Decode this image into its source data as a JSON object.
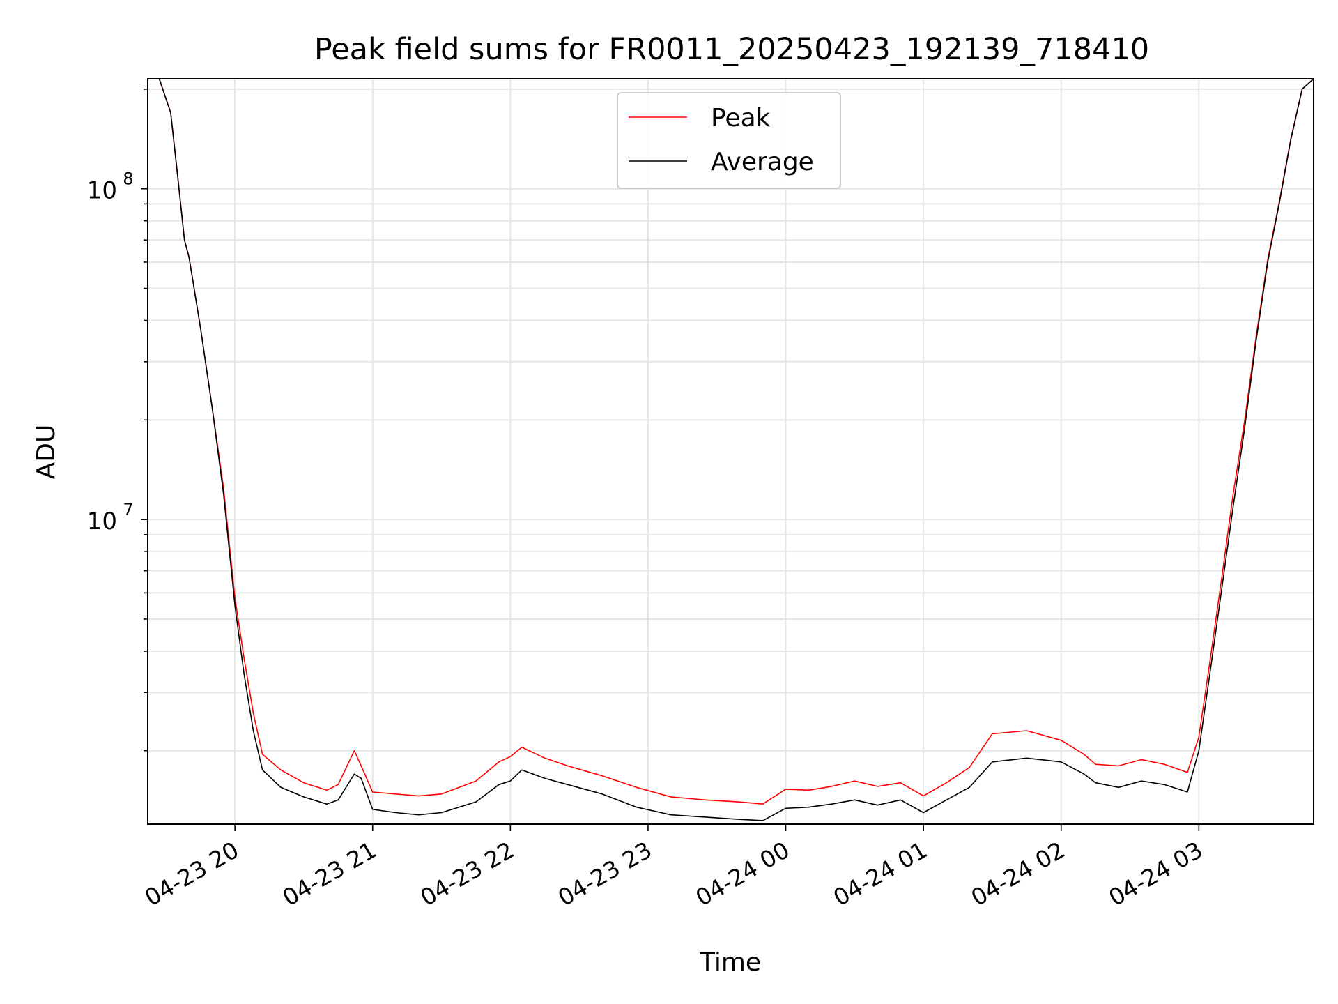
{
  "chart_data": {
    "type": "line",
    "title": "Peak field sums for FR0011_20250423_192139_718410",
    "xlabel": "Time",
    "ylabel": "ADU",
    "y_scale": "log",
    "ylim": [
      1200000,
      215000000
    ],
    "xlim": [
      "2025-04-23 19:22",
      "2025-04-24 03:50"
    ],
    "grid": true,
    "legend_position": "upper center",
    "x_ticks": [
      {
        "t": "2025-04-23 20:00",
        "label": "04-23 20"
      },
      {
        "t": "2025-04-23 21:00",
        "label": "04-23 21"
      },
      {
        "t": "2025-04-23 22:00",
        "label": "04-23 22"
      },
      {
        "t": "2025-04-23 23:00",
        "label": "04-23 23"
      },
      {
        "t": "2025-04-24 00:00",
        "label": "04-24 00"
      },
      {
        "t": "2025-04-24 01:00",
        "label": "04-24 01"
      },
      {
        "t": "2025-04-24 02:00",
        "label": "04-24 02"
      },
      {
        "t": "2025-04-24 03:00",
        "label": "04-24 03"
      }
    ],
    "y_ticks": [
      {
        "value": 10000000,
        "base": "10",
        "exp": "7"
      },
      {
        "value": 100000000,
        "base": "10",
        "exp": "8"
      }
    ],
    "series": [
      {
        "name": "Average",
        "color": "#000000",
        "x": [
          "2025-04-23 19:22",
          "2025-04-23 19:27",
          "2025-04-23 19:32",
          "2025-04-23 19:35",
          "2025-04-23 19:38",
          "2025-04-23 19:40",
          "2025-04-23 19:45",
          "2025-04-23 19:50",
          "2025-04-23 19:55",
          "2025-04-23 20:00",
          "2025-04-23 20:04",
          "2025-04-23 20:08",
          "2025-04-23 20:12",
          "2025-04-23 20:20",
          "2025-04-23 20:30",
          "2025-04-23 20:40",
          "2025-04-23 20:45",
          "2025-04-23 20:52",
          "2025-04-23 20:55",
          "2025-04-23 21:00",
          "2025-04-23 21:10",
          "2025-04-23 21:20",
          "2025-04-23 21:30",
          "2025-04-23 21:45",
          "2025-04-23 21:55",
          "2025-04-23 22:00",
          "2025-04-23 22:05",
          "2025-04-23 22:15",
          "2025-04-23 22:25",
          "2025-04-23 22:40",
          "2025-04-23 22:55",
          "2025-04-23 23:10",
          "2025-04-23 23:25",
          "2025-04-23 23:40",
          "2025-04-23 23:50",
          "2025-04-24 00:00",
          "2025-04-24 00:10",
          "2025-04-24 00:20",
          "2025-04-24 00:30",
          "2025-04-24 00:40",
          "2025-04-24 00:50",
          "2025-04-24 01:00",
          "2025-04-24 01:10",
          "2025-04-24 01:20",
          "2025-04-24 01:30",
          "2025-04-24 01:45",
          "2025-04-24 02:00",
          "2025-04-24 02:10",
          "2025-04-24 02:15",
          "2025-04-24 02:25",
          "2025-04-24 02:35",
          "2025-04-24 02:45",
          "2025-04-24 02:55",
          "2025-04-24 03:00",
          "2025-04-24 03:05",
          "2025-04-24 03:10",
          "2025-04-24 03:15",
          "2025-04-24 03:20",
          "2025-04-24 03:25",
          "2025-04-24 03:30",
          "2025-04-24 03:35",
          "2025-04-24 03:40",
          "2025-04-24 03:45",
          "2025-04-24 03:50"
        ],
        "y": [
          215000000,
          215000000,
          170000000,
          110000000,
          70000000,
          62000000,
          38000000,
          22000000,
          12000000,
          5500000,
          3400000,
          2300000,
          1750000,
          1550000,
          1450000,
          1380000,
          1420000,
          1700000,
          1650000,
          1330000,
          1300000,
          1280000,
          1300000,
          1400000,
          1580000,
          1620000,
          1750000,
          1650000,
          1580000,
          1480000,
          1350000,
          1280000,
          1260000,
          1240000,
          1230000,
          1340000,
          1350000,
          1380000,
          1420000,
          1370000,
          1420000,
          1300000,
          1420000,
          1550000,
          1850000,
          1900000,
          1850000,
          1700000,
          1600000,
          1550000,
          1620000,
          1580000,
          1500000,
          2000000,
          3500000,
          6200000,
          11000000,
          19000000,
          35000000,
          60000000,
          90000000,
          140000000,
          200000000,
          215000000
        ]
      },
      {
        "name": "Peak",
        "color": "#ff0000",
        "x": [
          "2025-04-23 19:22",
          "2025-04-23 19:27",
          "2025-04-23 19:32",
          "2025-04-23 19:35",
          "2025-04-23 19:38",
          "2025-04-23 19:40",
          "2025-04-23 19:45",
          "2025-04-23 19:50",
          "2025-04-23 19:55",
          "2025-04-23 20:00",
          "2025-04-23 20:04",
          "2025-04-23 20:08",
          "2025-04-23 20:12",
          "2025-04-23 20:20",
          "2025-04-23 20:30",
          "2025-04-23 20:40",
          "2025-04-23 20:45",
          "2025-04-23 20:52",
          "2025-04-23 20:55",
          "2025-04-23 21:00",
          "2025-04-23 21:10",
          "2025-04-23 21:20",
          "2025-04-23 21:30",
          "2025-04-23 21:45",
          "2025-04-23 21:55",
          "2025-04-23 22:00",
          "2025-04-23 22:05",
          "2025-04-23 22:15",
          "2025-04-23 22:25",
          "2025-04-23 22:40",
          "2025-04-23 22:55",
          "2025-04-23 23:10",
          "2025-04-23 23:25",
          "2025-04-23 23:40",
          "2025-04-23 23:50",
          "2025-04-24 00:00",
          "2025-04-24 00:10",
          "2025-04-24 00:20",
          "2025-04-24 00:30",
          "2025-04-24 00:40",
          "2025-04-24 00:50",
          "2025-04-24 01:00",
          "2025-04-24 01:10",
          "2025-04-24 01:20",
          "2025-04-24 01:30",
          "2025-04-24 01:45",
          "2025-04-24 02:00",
          "2025-04-24 02:10",
          "2025-04-24 02:15",
          "2025-04-24 02:25",
          "2025-04-24 02:35",
          "2025-04-24 02:45",
          "2025-04-24 02:55",
          "2025-04-24 03:00",
          "2025-04-24 03:05",
          "2025-04-24 03:10",
          "2025-04-24 03:15",
          "2025-04-24 03:20",
          "2025-04-24 03:25",
          "2025-04-24 03:30",
          "2025-04-24 03:35",
          "2025-04-24 03:40",
          "2025-04-24 03:45",
          "2025-04-24 03:50"
        ],
        "y": [
          215000000,
          215000000,
          170000000,
          110000000,
          70000000,
          62000000,
          38000000,
          22000000,
          12500000,
          5800000,
          3800000,
          2600000,
          1950000,
          1750000,
          1600000,
          1520000,
          1580000,
          2000000,
          1800000,
          1500000,
          1480000,
          1460000,
          1480000,
          1620000,
          1850000,
          1920000,
          2050000,
          1900000,
          1800000,
          1680000,
          1550000,
          1450000,
          1420000,
          1400000,
          1380000,
          1530000,
          1520000,
          1560000,
          1620000,
          1560000,
          1600000,
          1460000,
          1600000,
          1780000,
          2250000,
          2300000,
          2150000,
          1950000,
          1820000,
          1800000,
          1880000,
          1820000,
          1720000,
          2200000,
          3800000,
          6700000,
          12000000,
          20000000,
          36000000,
          61000000,
          91000000,
          141000000,
          200000000,
          215000000
        ]
      }
    ]
  }
}
